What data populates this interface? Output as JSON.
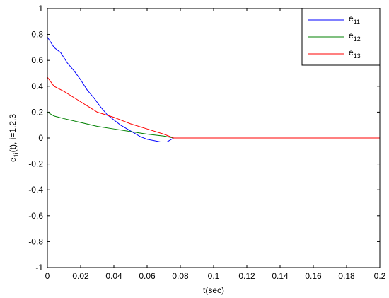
{
  "chart_data": {
    "type": "line",
    "xlabel": "t(sec)",
    "ylabel": "e1i(t), i=1,2,3",
    "xlim": [
      0,
      0.2
    ],
    "ylim": [
      -1,
      1
    ],
    "xticks": [
      0,
      0.02,
      0.04,
      0.06,
      0.08,
      0.1,
      0.12,
      0.14,
      0.16,
      0.18,
      0.2
    ],
    "yticks": [
      -1,
      -0.8,
      -0.6,
      -0.4,
      -0.2,
      0,
      0.2,
      0.4,
      0.6,
      0.8,
      1
    ],
    "legend": "upper right",
    "series": [
      {
        "name": "e11",
        "color": "#0000ff",
        "x": [
          0,
          0.004,
          0.008,
          0.012,
          0.016,
          0.02,
          0.024,
          0.028,
          0.032,
          0.036,
          0.04,
          0.044,
          0.048,
          0.052,
          0.056,
          0.06,
          0.064,
          0.068,
          0.072,
          0.076,
          0.08,
          0.2
        ],
        "values": [
          0.78,
          0.7,
          0.66,
          0.58,
          0.52,
          0.45,
          0.37,
          0.31,
          0.24,
          0.18,
          0.14,
          0.1,
          0.07,
          0.04,
          0.01,
          -0.01,
          -0.02,
          -0.03,
          -0.03,
          0,
          0,
          0
        ]
      },
      {
        "name": "e12",
        "color": "#008000",
        "x": [
          0,
          0.004,
          0.01,
          0.02,
          0.03,
          0.04,
          0.05,
          0.06,
          0.07,
          0.076,
          0.2
        ],
        "values": [
          0.2,
          0.17,
          0.15,
          0.12,
          0.09,
          0.07,
          0.05,
          0.03,
          0.015,
          0,
          0
        ]
      },
      {
        "name": "e13",
        "color": "#ff0000",
        "x": [
          0,
          0.004,
          0.01,
          0.02,
          0.03,
          0.04,
          0.05,
          0.06,
          0.07,
          0.076,
          0.2
        ],
        "values": [
          0.47,
          0.4,
          0.36,
          0.28,
          0.2,
          0.16,
          0.11,
          0.07,
          0.03,
          0,
          0
        ]
      }
    ]
  }
}
